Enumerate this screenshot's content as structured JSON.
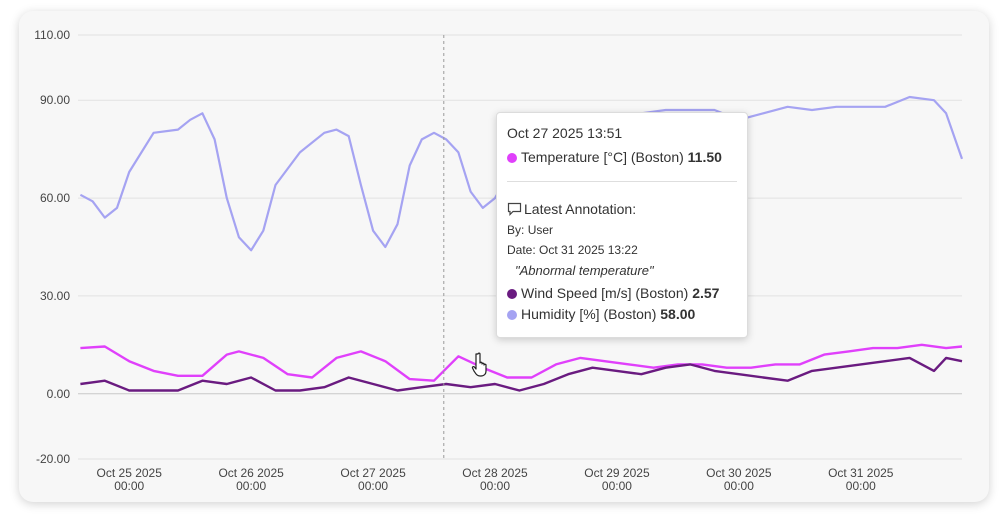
{
  "chart_data": {
    "type": "line",
    "x_tick_labels": [
      {
        "date": "Oct 25 2025",
        "time": "00:00"
      },
      {
        "date": "Oct 26 2025",
        "time": "00:00"
      },
      {
        "date": "Oct 27 2025",
        "time": "00:00"
      },
      {
        "date": "Oct 28 2025",
        "time": "00:00"
      },
      {
        "date": "Oct 29 2025",
        "time": "00:00"
      },
      {
        "date": "Oct 30 2025",
        "time": "00:00"
      },
      {
        "date": "Oct 31 2025",
        "time": "00:00"
      }
    ],
    "y_tick_labels": [
      "110.00",
      "90.00",
      "60.00",
      "30.00",
      "0.00",
      "-20.00"
    ],
    "y_ticks": [
      110,
      90,
      60,
      30,
      0,
      -20
    ],
    "ylim": [
      -20,
      110
    ],
    "x_range_days": [
      24.58,
      31.83
    ],
    "grid": true,
    "hover_day": 27.58,
    "series": [
      {
        "name": "Temperature [°C] (Boston)",
        "color": "#e040fb",
        "points": [
          [
            24.6,
            14
          ],
          [
            24.8,
            14.5
          ],
          [
            25.0,
            10
          ],
          [
            25.2,
            7
          ],
          [
            25.4,
            5.5
          ],
          [
            25.6,
            5.5
          ],
          [
            25.8,
            12
          ],
          [
            25.9,
            13
          ],
          [
            26.1,
            11
          ],
          [
            26.3,
            6
          ],
          [
            26.5,
            5
          ],
          [
            26.7,
            11
          ],
          [
            26.9,
            13
          ],
          [
            27.1,
            10
          ],
          [
            27.3,
            4.5
          ],
          [
            27.5,
            4
          ],
          [
            27.7,
            11.5
          ],
          [
            27.9,
            8
          ],
          [
            28.1,
            5
          ],
          [
            28.3,
            5
          ],
          [
            28.5,
            9
          ],
          [
            28.7,
            11
          ],
          [
            28.9,
            10
          ],
          [
            29.1,
            9
          ],
          [
            29.3,
            8
          ],
          [
            29.5,
            9
          ],
          [
            29.7,
            9
          ],
          [
            29.9,
            8
          ],
          [
            30.1,
            8
          ],
          [
            30.3,
            9
          ],
          [
            30.5,
            9
          ],
          [
            30.7,
            12
          ],
          [
            30.9,
            13
          ],
          [
            31.1,
            14
          ],
          [
            31.3,
            14
          ],
          [
            31.5,
            15
          ],
          [
            31.7,
            14
          ],
          [
            31.83,
            14.5
          ]
        ]
      },
      {
        "name": "Wind Speed [m/s] (Boston)",
        "color": "#6a1b80",
        "points": [
          [
            24.6,
            3
          ],
          [
            24.8,
            4
          ],
          [
            25.0,
            1
          ],
          [
            25.2,
            1
          ],
          [
            25.4,
            1
          ],
          [
            25.6,
            4
          ],
          [
            25.8,
            3
          ],
          [
            26.0,
            5
          ],
          [
            26.2,
            1
          ],
          [
            26.4,
            1
          ],
          [
            26.6,
            2
          ],
          [
            26.8,
            5
          ],
          [
            27.0,
            3
          ],
          [
            27.2,
            1
          ],
          [
            27.4,
            2
          ],
          [
            27.6,
            3
          ],
          [
            27.8,
            2
          ],
          [
            28.0,
            3
          ],
          [
            28.2,
            1
          ],
          [
            28.4,
            3
          ],
          [
            28.6,
            6
          ],
          [
            28.8,
            8
          ],
          [
            29.0,
            7
          ],
          [
            29.2,
            6
          ],
          [
            29.4,
            8
          ],
          [
            29.6,
            9
          ],
          [
            29.8,
            7
          ],
          [
            30.0,
            6
          ],
          [
            30.2,
            5
          ],
          [
            30.4,
            4
          ],
          [
            30.6,
            7
          ],
          [
            30.8,
            8
          ],
          [
            31.0,
            9
          ],
          [
            31.2,
            10
          ],
          [
            31.4,
            11
          ],
          [
            31.6,
            7
          ],
          [
            31.7,
            11
          ],
          [
            31.83,
            10
          ]
        ]
      },
      {
        "name": "Humidity [%] (Boston)",
        "color": "#a5a3f2",
        "points": [
          [
            24.6,
            61
          ],
          [
            24.7,
            59
          ],
          [
            24.8,
            54
          ],
          [
            24.9,
            57
          ],
          [
            25.0,
            68
          ],
          [
            25.2,
            80
          ],
          [
            25.4,
            81
          ],
          [
            25.5,
            84
          ],
          [
            25.6,
            86
          ],
          [
            25.7,
            78
          ],
          [
            25.8,
            60
          ],
          [
            25.9,
            48
          ],
          [
            26.0,
            44
          ],
          [
            26.1,
            50
          ],
          [
            26.2,
            64
          ],
          [
            26.4,
            74
          ],
          [
            26.6,
            80
          ],
          [
            26.7,
            81
          ],
          [
            26.8,
            79
          ],
          [
            26.9,
            64
          ],
          [
            27.0,
            50
          ],
          [
            27.1,
            45
          ],
          [
            27.2,
            52
          ],
          [
            27.3,
            70
          ],
          [
            27.4,
            78
          ],
          [
            27.5,
            80
          ],
          [
            27.6,
            78
          ],
          [
            27.7,
            74
          ],
          [
            27.8,
            62
          ],
          [
            27.9,
            57
          ],
          [
            28.0,
            60
          ],
          [
            28.2,
            73
          ],
          [
            28.4,
            80
          ],
          [
            28.6,
            84
          ],
          [
            28.8,
            86
          ],
          [
            29.0,
            86
          ],
          [
            29.2,
            86
          ],
          [
            29.4,
            87
          ],
          [
            29.6,
            87
          ],
          [
            29.8,
            87
          ],
          [
            30.0,
            84
          ],
          [
            30.2,
            86
          ],
          [
            30.4,
            88
          ],
          [
            30.6,
            87
          ],
          [
            30.8,
            88
          ],
          [
            31.0,
            88
          ],
          [
            31.2,
            88
          ],
          [
            31.4,
            91
          ],
          [
            31.6,
            90
          ],
          [
            31.7,
            86
          ],
          [
            31.83,
            72
          ]
        ]
      }
    ]
  },
  "tooltip": {
    "date": "Oct 27 2025 13:51",
    "temperature": {
      "label": "Temperature [°C] (Boston)",
      "value": "11.50",
      "color": "#e040fb"
    },
    "annotation_title": "Latest Annotation:",
    "by_label": "By:",
    "by_value": "User",
    "date_label": "Date:",
    "date_value": "Oct 31 2025 13:22",
    "note": "\"Abnormal temperature\"",
    "wind": {
      "label": "Wind Speed [m/s] (Boston)",
      "value": "2.57",
      "color": "#6a1b80"
    },
    "humidity": {
      "label": "Humidity [%] (Boston)",
      "value": "58.00",
      "color": "#a5a3f2"
    }
  },
  "icons": {
    "annotation": "comment-icon",
    "cursor": "hand-pointer-icon"
  }
}
